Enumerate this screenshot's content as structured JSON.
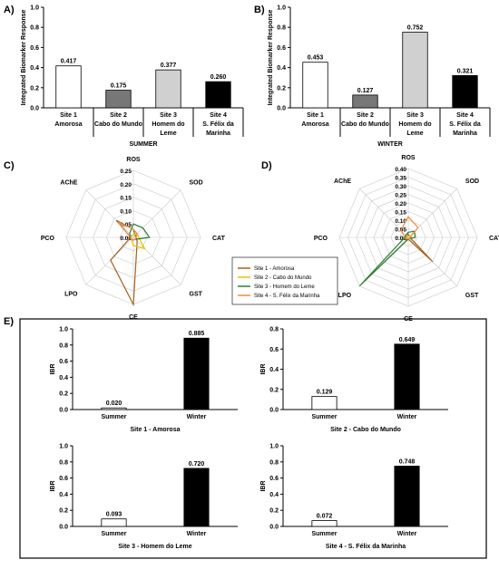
{
  "panel_labels": {
    "a": "A)",
    "b": "B)",
    "c": "C)",
    "d": "D)",
    "e": "E)"
  },
  "legend": {
    "items": [
      {
        "label": "Site 1 - Amorosa",
        "color": "#a6611a"
      },
      {
        "label": "Site 2 - Cabo do Mundo",
        "color": "#e5c100"
      },
      {
        "label": "Site 3 - Homem do Leme",
        "color": "#2e7d32"
      },
      {
        "label": "Site 4 - S. Félix da Marinha",
        "color": "#f08c3c"
      }
    ]
  },
  "chart_data": [
    {
      "id": "A",
      "type": "bar",
      "ylabel": "Integrated Biomarker Response",
      "xlabel": "SUMMER",
      "ylim": [
        0,
        1.0
      ],
      "yticks": [
        "0.0",
        "0.2",
        "0.4",
        "0.6",
        "0.8",
        "1.0"
      ],
      "categories": [
        [
          "Site 1",
          "Amorosa"
        ],
        [
          "Site 2",
          "Cabo do Mundo"
        ],
        [
          "Site 3",
          "Homem do",
          "Leme"
        ],
        [
          "Site 4",
          "S. Félix da",
          "Marinha"
        ]
      ],
      "values": [
        0.417,
        0.175,
        0.377,
        0.26
      ],
      "value_labels": [
        "0.417",
        "0.175",
        "0.377",
        "0.260"
      ],
      "colors": [
        "#ffffff",
        "#777777",
        "#d0d0d0",
        "#000000"
      ]
    },
    {
      "id": "B",
      "type": "bar",
      "ylabel": "Integrated Biomarker Response",
      "xlabel": "WINTER",
      "ylim": [
        0,
        1.0
      ],
      "yticks": [
        "0.0",
        "0.2",
        "0.4",
        "0.6",
        "0.8",
        "1.0"
      ],
      "categories": [
        [
          "Site 1",
          "Amorosa"
        ],
        [
          "Site 2",
          "Cabo do Mundo"
        ],
        [
          "Site 3",
          "Homem do",
          "Leme"
        ],
        [
          "Site 4",
          "S. Félix da",
          "Marinha"
        ]
      ],
      "values": [
        0.453,
        0.127,
        0.752,
        0.321
      ],
      "value_labels": [
        "0.453",
        "0.127",
        "0.752",
        "0.321"
      ],
      "colors": [
        "#ffffff",
        "#777777",
        "#d0d0d0",
        "#000000"
      ]
    },
    {
      "id": "C",
      "type": "radar",
      "axes": [
        "ROS",
        "SOD",
        "CAT",
        "GST",
        "CE",
        "LPO",
        "PCO",
        "AChE"
      ],
      "rmax": 0.25,
      "ticks": [
        "0.00",
        "0.05",
        "0.10",
        "0.15",
        "0.20",
        "0.25"
      ],
      "series": [
        {
          "name": "Site 1 - Amorosa",
          "color": "#a6611a",
          "values": [
            0.03,
            0.01,
            0.01,
            0.02,
            0.25,
            0.12,
            0.01,
            0.09
          ]
        },
        {
          "name": "Site 2 - Cabo do Mundo",
          "color": "#e5c100",
          "values": [
            0.01,
            0.02,
            0.02,
            0.06,
            0.03,
            0.01,
            0.01,
            0.01
          ]
        },
        {
          "name": "Site 3 - Homem do Leme",
          "color": "#2e7d32",
          "values": [
            0.05,
            0.05,
            0.06,
            0.01,
            0.01,
            0.01,
            0.01,
            0.02
          ]
        },
        {
          "name": "Site 4 - S. Félix da Marinha",
          "color": "#f08c3c",
          "values": [
            0.03,
            0.02,
            0.01,
            0.01,
            0.01,
            0.01,
            0.01,
            0.08
          ]
        }
      ]
    },
    {
      "id": "D",
      "type": "radar",
      "axes": [
        "ROS",
        "SOD",
        "CAT",
        "GST",
        "CE",
        "LPO",
        "PCO",
        "AChE"
      ],
      "rmax": 0.4,
      "ticks": [
        "0.00",
        "0.05",
        "0.10",
        "0.15",
        "0.20",
        "0.25",
        "0.30",
        "0.35",
        "0.40"
      ],
      "series": [
        {
          "name": "Site 1 - Amorosa",
          "color": "#a6611a",
          "values": [
            0.02,
            0.01,
            0.01,
            0.2,
            0.01,
            0.02,
            0.02,
            0.01
          ]
        },
        {
          "name": "Site 2 - Cabo do Mundo",
          "color": "#e5c100",
          "values": [
            0.01,
            0.01,
            0.02,
            0.01,
            0.01,
            0.01,
            0.01,
            0.01
          ]
        },
        {
          "name": "Site 3 - Homem do Leme",
          "color": "#2e7d32",
          "values": [
            0.03,
            0.05,
            0.04,
            0.01,
            0.01,
            0.4,
            0.02,
            0.02
          ]
        },
        {
          "name": "Site 4 - S. Félix da Marinha",
          "color": "#f08c3c",
          "values": [
            0.12,
            0.08,
            0.01,
            0.01,
            0.01,
            0.01,
            0.02,
            0.06
          ]
        }
      ]
    },
    {
      "id": "E1",
      "type": "bar",
      "ylabel": "IBR",
      "xlabel": "Site 1 - Amorosa",
      "ylim": [
        0,
        1.0
      ],
      "yticks": [
        "0.0",
        "0.2",
        "0.4",
        "0.6",
        "0.8",
        "1.0"
      ],
      "categories": [
        "Summer",
        "Winter"
      ],
      "values": [
        0.02,
        0.885
      ],
      "value_labels": [
        "0.020",
        "0.885"
      ],
      "colors": [
        "#ffffff",
        "#000000"
      ]
    },
    {
      "id": "E2",
      "type": "bar",
      "ylabel": "IBR",
      "xlabel": "Site 2 - Cabo do Mundo",
      "ylim": [
        0,
        0.8
      ],
      "yticks": [
        "0.0",
        "0.2",
        "0.4",
        "0.6",
        "0.8"
      ],
      "categories": [
        "Summer",
        "Winter"
      ],
      "values": [
        0.129,
        0.649
      ],
      "value_labels": [
        "0.129",
        "0.649"
      ],
      "colors": [
        "#ffffff",
        "#000000"
      ]
    },
    {
      "id": "E3",
      "type": "bar",
      "ylabel": "IBR",
      "xlabel": "Site 3 - Homem do Leme",
      "ylim": [
        0,
        1.0
      ],
      "yticks": [
        "0.0",
        "0.2",
        "0.4",
        "0.6",
        "0.8",
        "1.0"
      ],
      "categories": [
        "Summer",
        "Winter"
      ],
      "values": [
        0.093,
        0.72
      ],
      "value_labels": [
        "0.093",
        "0.720"
      ],
      "colors": [
        "#ffffff",
        "#000000"
      ]
    },
    {
      "id": "E4",
      "type": "bar",
      "ylabel": "IBR",
      "xlabel": "Site 4 - S. Félix da Marinha",
      "ylim": [
        0,
        1.0
      ],
      "yticks": [
        "0.0",
        "0.2",
        "0.4",
        "0.6",
        "0.8",
        "1.0"
      ],
      "categories": [
        "Summer",
        "Winter"
      ],
      "values": [
        0.072,
        0.748
      ],
      "value_labels": [
        "0.072",
        "0.748"
      ],
      "colors": [
        "#ffffff",
        "#000000"
      ]
    }
  ]
}
